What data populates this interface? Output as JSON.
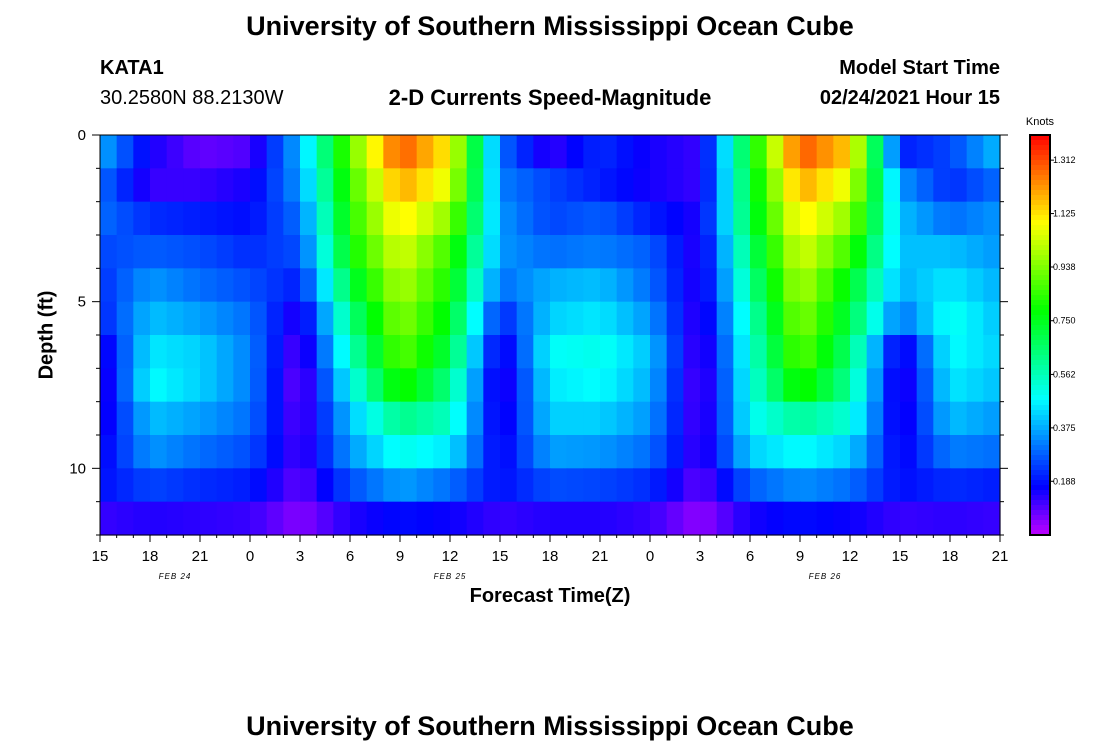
{
  "page": {
    "title_top": "University of Southern Mississippi Ocean Cube",
    "title_bottom": "University of Southern Mississippi Ocean Cube",
    "station": "KATA1",
    "coords": "30.2580N 88.2130W",
    "plot_title": "2-D Currents Speed-Magnitude",
    "model_start_label": "Model Start Time",
    "model_start_value": "02/24/2021 Hour 15"
  },
  "chart_data": {
    "type": "heatmap",
    "title": "2-D Currents Speed-Magnitude",
    "xlabel": "Forecast Time(Z)",
    "ylabel": "Depth (ft)",
    "x_tick_labels": [
      "15",
      "18",
      "21",
      "0",
      "3",
      "6",
      "9",
      "12",
      "15",
      "18",
      "21",
      "0",
      "3",
      "6",
      "9",
      "12",
      "15",
      "18",
      "21"
    ],
    "x_hours_range": [
      0,
      54
    ],
    "date_labels": [
      {
        "text": "FEB 24",
        "hour": 4.5
      },
      {
        "text": "FEB 25",
        "hour": 21
      },
      {
        "text": "FEB 26",
        "hour": 43.5
      }
    ],
    "y_tick_labels": [
      "0",
      "5",
      "10"
    ],
    "y_ticks": [
      0,
      5,
      10
    ],
    "ylim": [
      0,
      12
    ],
    "colorbar": {
      "unit": "Knots",
      "range": [
        0.0,
        1.4
      ],
      "tick_labels": [
        "1.312",
        "1.125",
        "0.938",
        "0.750",
        "0.562",
        "0.375",
        "0.188"
      ],
      "tick_values": [
        1.312,
        1.125,
        0.938,
        0.75,
        0.562,
        0.375,
        0.188
      ]
    },
    "depth_levels_ft": [
      0.5,
      1.5,
      2.5,
      3.5,
      4.5,
      5.5,
      6.5,
      7.5,
      8.5,
      9.5,
      10.5,
      11.5
    ],
    "hours": [
      0,
      3,
      6,
      9,
      12,
      15,
      18,
      21,
      24,
      27,
      30,
      33,
      36,
      39,
      42,
      45,
      48,
      51,
      54
    ],
    "speed_knots": [
      [
        0.38,
        0.15,
        0.08,
        0.1,
        0.38,
        0.9,
        1.3,
        1.1,
        0.3,
        0.12,
        0.22,
        0.15,
        0.12,
        0.75,
        1.3,
        1.15,
        0.2,
        0.25,
        0.4
      ],
      [
        0.3,
        0.12,
        0.12,
        0.15,
        0.35,
        0.85,
        1.2,
        1.05,
        0.32,
        0.25,
        0.2,
        0.15,
        0.12,
        0.72,
        1.2,
        1.05,
        0.35,
        0.22,
        0.3
      ],
      [
        0.3,
        0.22,
        0.2,
        0.18,
        0.3,
        0.82,
        1.12,
        0.95,
        0.35,
        0.25,
        0.28,
        0.2,
        0.14,
        0.7,
        1.12,
        0.95,
        0.4,
        0.3,
        0.35
      ],
      [
        0.25,
        0.28,
        0.26,
        0.22,
        0.26,
        0.78,
        1.05,
        0.85,
        0.35,
        0.3,
        0.32,
        0.28,
        0.12,
        0.65,
        1.05,
        0.85,
        0.4,
        0.4,
        0.35
      ],
      [
        0.22,
        0.35,
        0.3,
        0.26,
        0.2,
        0.7,
        1.0,
        0.8,
        0.3,
        0.38,
        0.4,
        0.3,
        0.12,
        0.6,
        1.0,
        0.75,
        0.38,
        0.45,
        0.38
      ],
      [
        0.2,
        0.4,
        0.36,
        0.3,
        0.12,
        0.62,
        0.95,
        0.75,
        0.2,
        0.42,
        0.45,
        0.35,
        0.1,
        0.55,
        0.95,
        0.7,
        0.3,
        0.5,
        0.4
      ],
      [
        0.12,
        0.45,
        0.42,
        0.32,
        0.08,
        0.55,
        0.9,
        0.7,
        0.12,
        0.48,
        0.5,
        0.4,
        0.08,
        0.52,
        0.9,
        0.65,
        0.12,
        0.48,
        0.42
      ],
      [
        0.1,
        0.48,
        0.42,
        0.32,
        0.06,
        0.48,
        0.82,
        0.62,
        0.1,
        0.45,
        0.48,
        0.38,
        0.07,
        0.5,
        0.82,
        0.6,
        0.1,
        0.45,
        0.4
      ],
      [
        0.12,
        0.4,
        0.36,
        0.3,
        0.08,
        0.4,
        0.62,
        0.55,
        0.12,
        0.42,
        0.42,
        0.35,
        0.08,
        0.48,
        0.6,
        0.52,
        0.12,
        0.4,
        0.35
      ],
      [
        0.15,
        0.35,
        0.3,
        0.26,
        0.1,
        0.35,
        0.5,
        0.45,
        0.15,
        0.36,
        0.35,
        0.3,
        0.1,
        0.42,
        0.48,
        0.42,
        0.15,
        0.32,
        0.3
      ],
      [
        0.18,
        0.25,
        0.22,
        0.2,
        0.08,
        0.26,
        0.36,
        0.3,
        0.18,
        0.26,
        0.25,
        0.22,
        0.08,
        0.28,
        0.34,
        0.3,
        0.18,
        0.22,
        0.2
      ],
      [
        0.12,
        0.14,
        0.13,
        0.12,
        0.05,
        0.14,
        0.18,
        0.16,
        0.12,
        0.14,
        0.14,
        0.12,
        0.04,
        0.15,
        0.18,
        0.16,
        0.12,
        0.13,
        0.12
      ]
    ]
  }
}
